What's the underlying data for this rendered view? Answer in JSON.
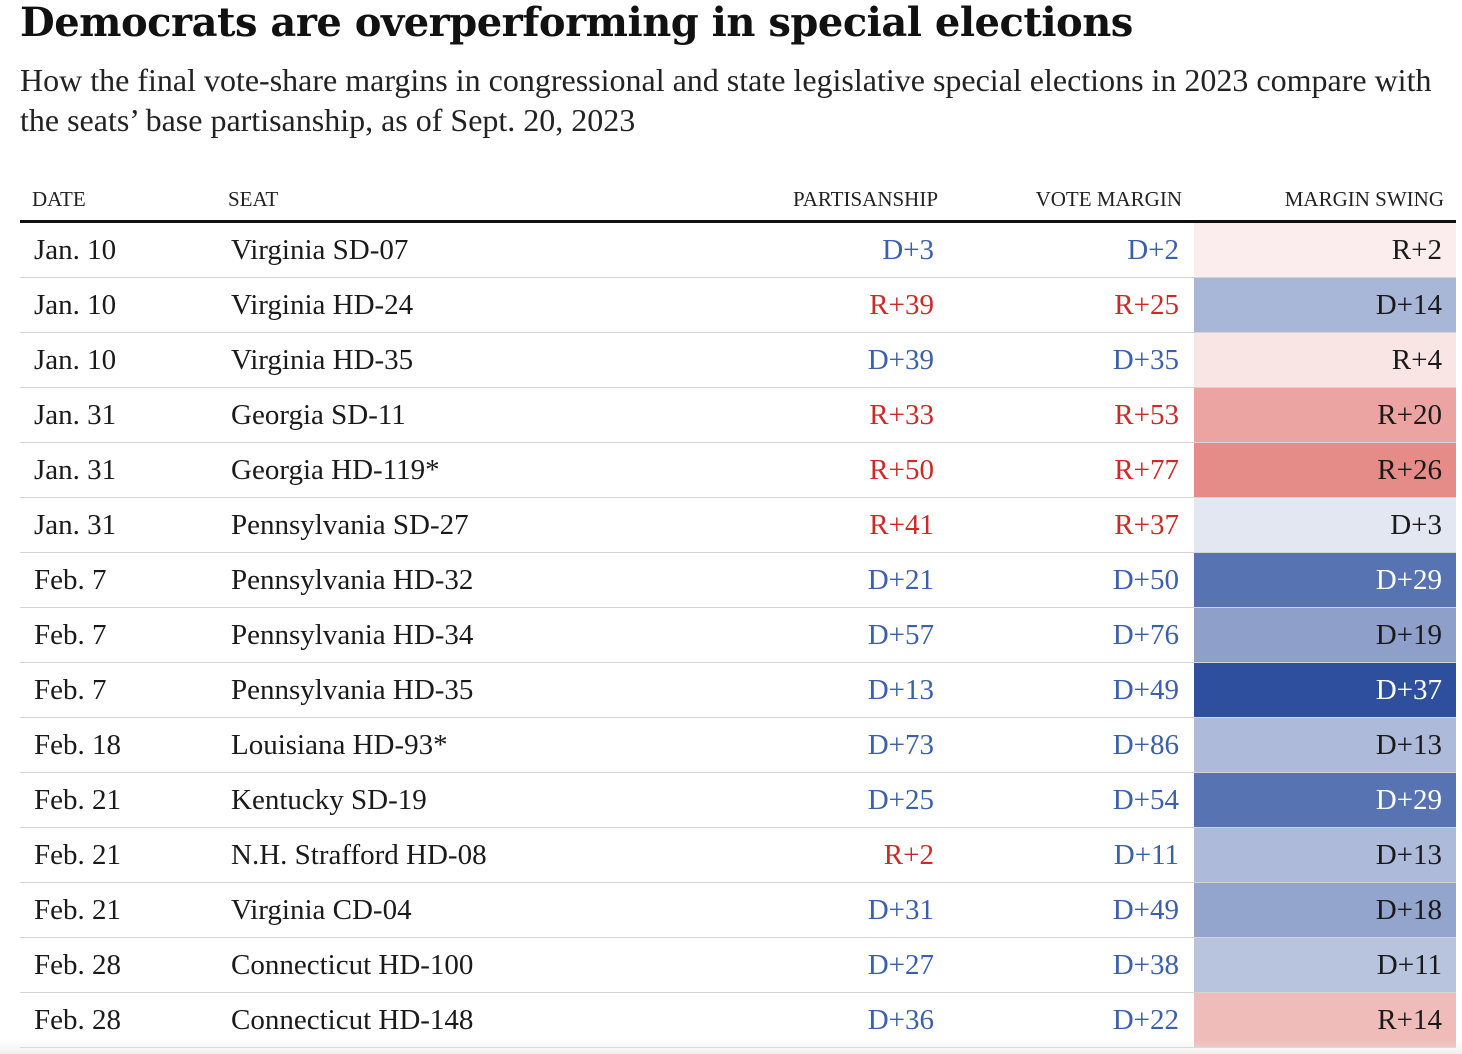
{
  "title": "Democrats are overperforming in special elections",
  "subtitle": "How the final vote-share margins in congressional and state legislative special elections in 2023 compare with the seats’ base partisanship, as of Sept. 20, 2023",
  "colors": {
    "dem_text": "#3a5fad",
    "rep_text": "#cc2a26",
    "dem_scale_max": "#2e4f9e",
    "rep_scale_max": "#dc5f5a"
  },
  "chart_data": {
    "type": "table",
    "columns": [
      "DATE",
      "SEAT",
      "PARTISANSHIP",
      "VOTE MARGIN",
      "MARGIN SWING"
    ],
    "rows": [
      {
        "date": "Jan. 10",
        "seat": "Virginia SD-07",
        "partisanship": "D+3",
        "vote_margin": "D+2",
        "margin_swing": "R+2"
      },
      {
        "date": "Jan. 10",
        "seat": "Virginia HD-24",
        "partisanship": "R+39",
        "vote_margin": "R+25",
        "margin_swing": "D+14"
      },
      {
        "date": "Jan. 10",
        "seat": "Virginia HD-35",
        "partisanship": "D+39",
        "vote_margin": "D+35",
        "margin_swing": "R+4"
      },
      {
        "date": "Jan. 31",
        "seat": "Georgia SD-11",
        "partisanship": "R+33",
        "vote_margin": "R+53",
        "margin_swing": "R+20"
      },
      {
        "date": "Jan. 31",
        "seat": "Georgia HD-119*",
        "partisanship": "R+50",
        "vote_margin": "R+77",
        "margin_swing": "R+26"
      },
      {
        "date": "Jan. 31",
        "seat": "Pennsylvania SD-27",
        "partisanship": "R+41",
        "vote_margin": "R+37",
        "margin_swing": "D+3"
      },
      {
        "date": "Feb. 7",
        "seat": "Pennsylvania HD-32",
        "partisanship": "D+21",
        "vote_margin": "D+50",
        "margin_swing": "D+29"
      },
      {
        "date": "Feb. 7",
        "seat": "Pennsylvania HD-34",
        "partisanship": "D+57",
        "vote_margin": "D+76",
        "margin_swing": "D+19"
      },
      {
        "date": "Feb. 7",
        "seat": "Pennsylvania HD-35",
        "partisanship": "D+13",
        "vote_margin": "D+49",
        "margin_swing": "D+37"
      },
      {
        "date": "Feb. 18",
        "seat": "Louisiana HD-93*",
        "partisanship": "D+73",
        "vote_margin": "D+86",
        "margin_swing": "D+13"
      },
      {
        "date": "Feb. 21",
        "seat": "Kentucky SD-19",
        "partisanship": "D+25",
        "vote_margin": "D+54",
        "margin_swing": "D+29"
      },
      {
        "date": "Feb. 21",
        "seat": "N.H. Strafford HD-08",
        "partisanship": "R+2",
        "vote_margin": "D+11",
        "margin_swing": "D+13"
      },
      {
        "date": "Feb. 21",
        "seat": "Virginia CD-04",
        "partisanship": "D+31",
        "vote_margin": "D+49",
        "margin_swing": "D+18"
      },
      {
        "date": "Feb. 28",
        "seat": "Connecticut HD-100",
        "partisanship": "D+27",
        "vote_margin": "D+38",
        "margin_swing": "D+11"
      },
      {
        "date": "Feb. 28",
        "seat": "Connecticut HD-148",
        "partisanship": "D+36",
        "vote_margin": "D+22",
        "margin_swing": "R+14"
      }
    ]
  }
}
